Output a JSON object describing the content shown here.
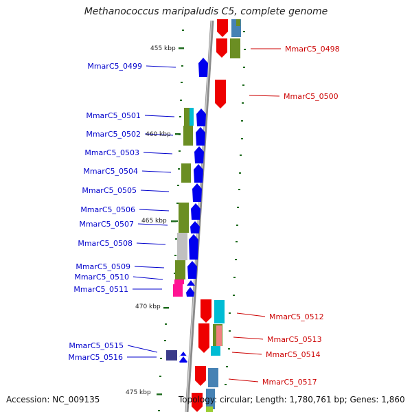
{
  "title": "Methanococcus maripaludis C5, complete genome",
  "accession": "Accession: NC_009135",
  "summary": "Topology: circular; Length: 1,780,761 bp; Genes: 1,860",
  "colors": {
    "left_label": "#0000cc",
    "right_label": "#cc0000",
    "tick": "#1e6b1e",
    "backbone": "#999999"
  },
  "kbp_markers": [
    "455 kbp",
    "460 kbp",
    "465 kbp",
    "470 kbp",
    "475 kbp"
  ],
  "left_genes": [
    "MmarC5_0499",
    "MmarC5_0501",
    "MmarC5_0502",
    "MmarC5_0503",
    "MmarC5_0504",
    "MmarC5_0505",
    "MmarC5_0506",
    "MmarC5_0507",
    "MmarC5_0508",
    "MmarC5_0509",
    "MmarC5_0510",
    "MmarC5_0511",
    "MmarC5_0515",
    "MmarC5_0516"
  ],
  "right_genes": [
    "MmarC5_0498",
    "MmarC5_0500",
    "MmarC5_0512",
    "MmarC5_0513",
    "MmarC5_0514",
    "MmarC5_0517"
  ]
}
